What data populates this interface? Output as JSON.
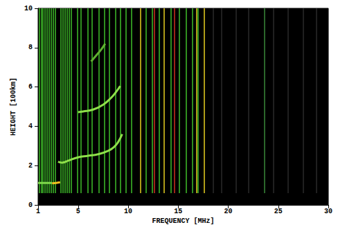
{
  "chart_data": {
    "type": "line",
    "x_label": "FREQUENCY [MHz]",
    "y_label": "HEIGHT [100km]",
    "xlim": [
      1,
      30
    ],
    "xticks": [
      1,
      5,
      10,
      15,
      20,
      25,
      30
    ],
    "ylim": [
      0,
      10
    ],
    "yticks": [
      0,
      2,
      4,
      6,
      8,
      10
    ],
    "grid": false,
    "series": [
      {
        "color": "#7ed84a",
        "x": [
          1.0,
          1.5,
          2.0,
          2.4
        ],
        "values": [
          1.12,
          1.12,
          1.12,
          1.12
        ]
      },
      {
        "color": "#f0c020",
        "x": [
          2.4,
          2.8,
          3.2
        ],
        "values": [
          1.1,
          1.12,
          1.15
        ]
      },
      {
        "color": "#8fe04a",
        "x": [
          3.0,
          3.4,
          4.0,
          5.0,
          6.0,
          7.0,
          8.0,
          8.6,
          9.0,
          9.4
        ],
        "values": [
          2.2,
          2.15,
          2.25,
          2.42,
          2.5,
          2.58,
          2.75,
          2.95,
          3.2,
          3.6
        ]
      },
      {
        "color": "#8fe04a",
        "x": [
          5.0,
          5.5,
          6.5,
          7.5,
          8.3,
          8.8,
          9.2
        ],
        "values": [
          4.72,
          4.75,
          4.85,
          5.1,
          5.45,
          5.75,
          6.05
        ]
      },
      {
        "color": "#5fb030",
        "x": [
          6.3,
          6.8,
          7.3,
          7.7
        ],
        "values": [
          7.3,
          7.6,
          7.9,
          8.2
        ]
      }
    ],
    "interference": {
      "from": 0.6,
      "to": 10,
      "groups": [
        {
          "color": "#3fbf2a",
          "x": [
            1.1,
            1.3,
            1.5,
            1.7,
            1.9,
            2.1,
            2.3,
            2.5,
            2.7,
            3.3,
            3.5,
            3.7,
            3.9,
            4.1,
            4.3,
            4.9,
            5.3,
            6.0,
            6.4,
            7.1,
            7.6,
            8.1,
            8.7,
            9.2,
            9.8,
            10.3,
            11.8,
            12.4,
            13.1,
            14.3,
            15.1,
            15.8,
            16.4,
            17.0
          ]
        },
        {
          "color": "#e8d020",
          "x": [
            11.2,
            13.6,
            16.8,
            17.6
          ]
        },
        {
          "color": "#d03020",
          "x": [
            12.6,
            14.6
          ]
        },
        {
          "color": "#2a2a2a",
          "x": [
            18.5,
            19.3,
            20.8,
            22.0,
            24.5,
            26.0,
            27.5,
            28.8
          ]
        },
        {
          "color": "#3a8a3a",
          "x": [
            23.6
          ]
        }
      ]
    }
  }
}
